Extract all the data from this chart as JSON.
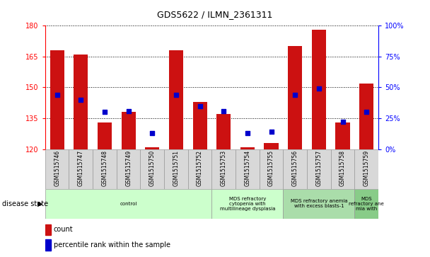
{
  "title": "GDS5622 / ILMN_2361311",
  "samples": [
    "GSM1515746",
    "GSM1515747",
    "GSM1515748",
    "GSM1515749",
    "GSM1515750",
    "GSM1515751",
    "GSM1515752",
    "GSM1515753",
    "GSM1515754",
    "GSM1515755",
    "GSM1515756",
    "GSM1515757",
    "GSM1515758",
    "GSM1515759"
  ],
  "count_values": [
    168,
    166,
    133,
    138,
    121,
    168,
    143,
    137,
    121,
    123,
    170,
    178,
    133,
    152
  ],
  "percentile_values": [
    44,
    40,
    30,
    31,
    13,
    44,
    35,
    31,
    13,
    14,
    44,
    49,
    22,
    30
  ],
  "ymin": 120,
  "ymax": 180,
  "y_ticks_left": [
    120,
    135,
    150,
    165,
    180
  ],
  "y_ticks_right": [
    0,
    25,
    50,
    75,
    100
  ],
  "bar_color": "#cc1111",
  "percentile_color": "#0000cc",
  "disease_groups": [
    {
      "label": "control",
      "start": 0,
      "end": 6,
      "color": "#ccffcc"
    },
    {
      "label": "MDS refractory\ncytopenia with\nmultilineage dysplasia",
      "start": 7,
      "end": 9,
      "color": "#ccffcc"
    },
    {
      "label": "MDS refractory anemia\nwith excess blasts-1",
      "start": 10,
      "end": 12,
      "color": "#aaddaa"
    },
    {
      "label": "MDS\nrefractory ane\nmia with",
      "start": 13,
      "end": 13,
      "color": "#88cc88"
    }
  ]
}
